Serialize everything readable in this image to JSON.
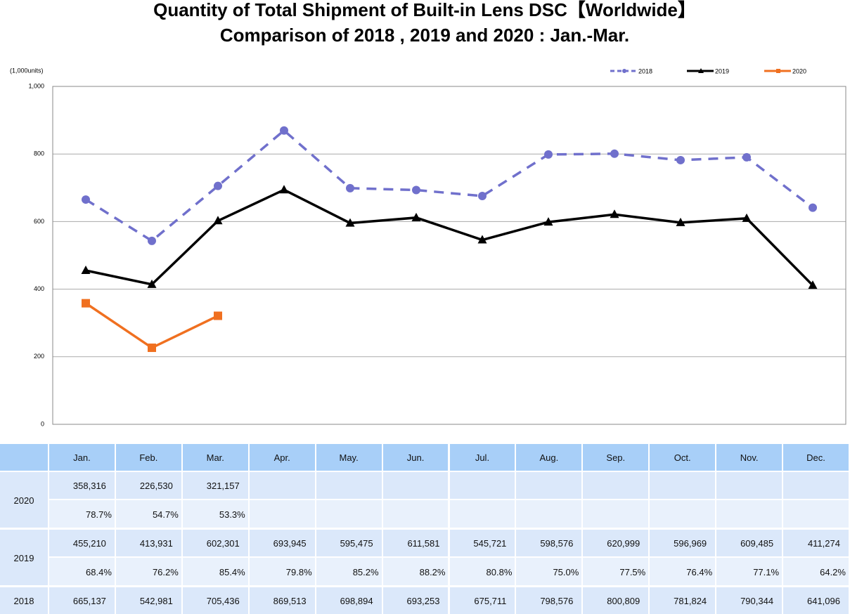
{
  "chart_data": {
    "type": "line",
    "title": "Quantity of Total Shipment of Built-in Lens DSC【Worldwide】",
    "subtitle": "Comparison of 2018 , 2019 and 2020 : Jan.-Mar.",
    "y_label": "(1,000units)",
    "categories": [
      "Jan.",
      "Feb.",
      "Mar.",
      "Apr.",
      "May.",
      "Jun.",
      "Jul.",
      "Aug.",
      "Sep.",
      "Oct.",
      "Nov.",
      "Dec."
    ],
    "ylim": [
      0,
      1000
    ],
    "yticks": [
      0,
      200,
      400,
      600,
      800,
      {
        "value": 1000,
        "label": "1,000"
      }
    ],
    "grid": true,
    "legend": "top-right",
    "series": [
      {
        "name": "2020",
        "color": "#f07020",
        "marker": "square",
        "dashed": false,
        "values": [
          358.316,
          226.53,
          321.157,
          null,
          null,
          null,
          null,
          null,
          null,
          null,
          null,
          null
        ],
        "value_labels": [
          "358,316",
          "226,530",
          "321,157",
          null,
          null,
          null,
          null,
          null,
          null,
          null,
          null,
          null
        ],
        "ratios": [
          "78.7%",
          "54.7%",
          "53.3%",
          null,
          null,
          null,
          null,
          null,
          null,
          null,
          null,
          null
        ]
      },
      {
        "name": "2019",
        "color": "#000000",
        "marker": "triangle",
        "dashed": false,
        "values": [
          455.21,
          413.931,
          602.301,
          693.945,
          595.475,
          611.581,
          545.721,
          598.576,
          620.999,
          596.969,
          609.485,
          411.274
        ],
        "value_labels": [
          "455,210",
          "413,931",
          "602,301",
          "693,945",
          "595,475",
          "611,581",
          "545,721",
          "598,576",
          "620,999",
          "596,969",
          "609,485",
          "411,274"
        ],
        "ratios": [
          "68.4%",
          "76.2%",
          "85.4%",
          "79.8%",
          "85.2%",
          "88.2%",
          "80.8%",
          "75.0%",
          "77.5%",
          "76.4%",
          "77.1%",
          "64.2%"
        ]
      },
      {
        "name": "2018",
        "color": "#7070cc",
        "marker": "circle",
        "dashed": true,
        "values": [
          665.137,
          542.981,
          705.436,
          869.513,
          698.894,
          693.253,
          675.711,
          798.576,
          800.809,
          781.824,
          790.344,
          641.096
        ],
        "value_labels": [
          "665,137",
          "542,981",
          "705,436",
          "869,513",
          "698,894",
          "693,253",
          "675,711",
          "798,576",
          "800,809",
          "781,824",
          "790,344",
          "641,096"
        ]
      }
    ]
  }
}
